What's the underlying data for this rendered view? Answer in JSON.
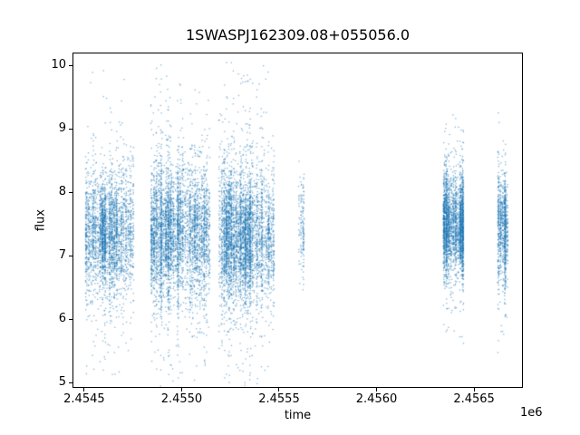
{
  "figure": {
    "background_color": "#ffffff",
    "text_color": "#000000",
    "spine_color": "#000000"
  },
  "chart_data": {
    "type": "scatter",
    "title": "1SWASPJ162309.08+055056.0",
    "xlabel": "time",
    "ylabel": "flux",
    "x_offset_label": "1e6",
    "xlim": [
      2454440,
      2456746
    ],
    "ylim": [
      4.93,
      10.2
    ],
    "xtick_values": [
      2454500,
      2455000,
      2455500,
      2456000,
      2456500
    ],
    "xtick_labels": [
      "2.4545",
      "2.4550",
      "2.4555",
      "2.4560",
      "2.4565"
    ],
    "ytick_values": [
      5,
      6,
      7,
      8,
      9,
      10
    ],
    "ytick_labels": [
      "5",
      "6",
      "7",
      "8",
      "9",
      "10"
    ],
    "grid": false,
    "legend": null,
    "point_color": "#1f77b4",
    "point_alpha": 0.55,
    "marker_size_px": 1.3,
    "series": [
      {
        "name": "flux",
        "description": "SuperWASP light curve: dense seasonal clusters of ~1px markers; flux core ~6.6-8.4 with sparse outliers to ~5 and ~10",
        "clusters": [
          {
            "x_start": 2454505,
            "x_end": 2454756,
            "n_points": 3000,
            "flux_center": 7.35,
            "flux_std": 0.5,
            "tail_frac": 0.1,
            "tail_std": 1.2,
            "flux_min": 5.05,
            "flux_max": 10.0
          },
          {
            "x_start": 2454840,
            "x_end": 2455147,
            "n_points": 4200,
            "flux_center": 7.35,
            "flux_std": 0.5,
            "tail_frac": 0.12,
            "tail_std": 1.3,
            "flux_min": 4.8,
            "flux_max": 10.05
          },
          {
            "x_start": 2455189,
            "x_end": 2455477,
            "n_points": 4200,
            "flux_center": 7.3,
            "flux_std": 0.52,
            "tail_frac": 0.12,
            "tail_std": 1.3,
            "flux_min": 4.7,
            "flux_max": 10.05
          },
          {
            "x_start": 2455598,
            "x_end": 2455630,
            "n_points": 140,
            "flux_center": 7.5,
            "flux_std": 0.45,
            "tail_frac": 0.12,
            "tail_std": 0.8,
            "flux_min": 6.4,
            "flux_max": 8.85
          },
          {
            "x_start": 2456341,
            "x_end": 2456448,
            "n_points": 2600,
            "flux_center": 7.45,
            "flux_std": 0.42,
            "tail_frac": 0.07,
            "tail_std": 1.0,
            "flux_min": 5.4,
            "flux_max": 9.35
          },
          {
            "x_start": 2456620,
            "x_end": 2456676,
            "n_points": 900,
            "flux_center": 7.5,
            "flux_std": 0.45,
            "tail_frac": 0.08,
            "tail_std": 1.0,
            "flux_min": 5.0,
            "flux_max": 9.4
          }
        ]
      }
    ]
  }
}
